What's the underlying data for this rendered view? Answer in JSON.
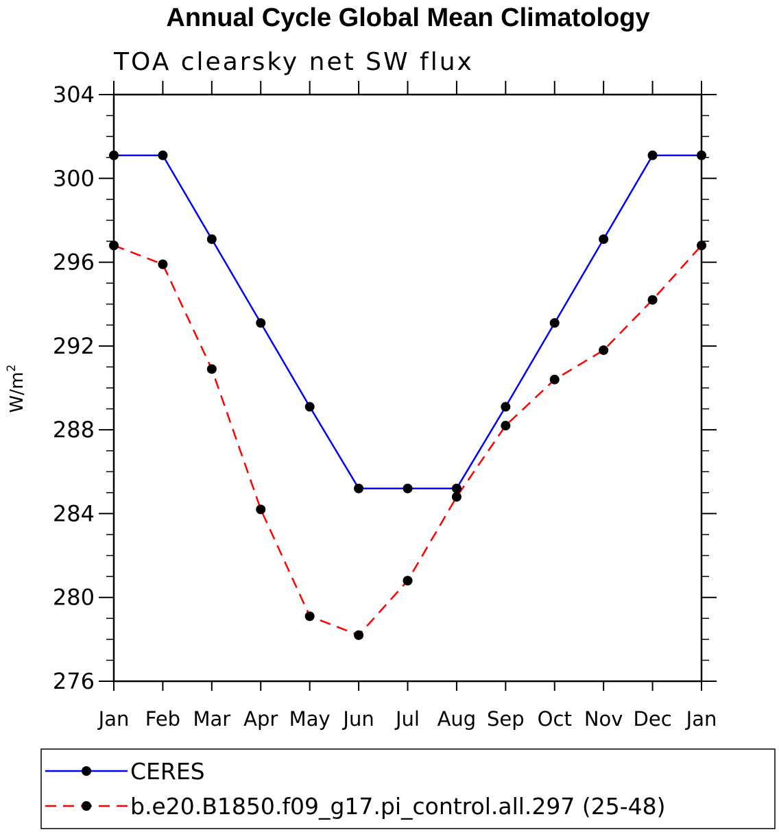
{
  "chart_data": {
    "type": "line",
    "title": "Annual Cycle Global Mean Climatology",
    "subtitle": "TOA clearsky net SW flux",
    "ylabel": "W/m",
    "ylabel_sup": "2",
    "ylim": [
      276,
      304
    ],
    "yticks": [
      276,
      280,
      284,
      288,
      292,
      296,
      300,
      304
    ],
    "ytick_labels": [
      "276",
      "280",
      "284",
      "288",
      "292",
      "296",
      "300",
      "304"
    ],
    "categories": [
      "Jan",
      "Feb",
      "Mar",
      "Apr",
      "May",
      "Jun",
      "Jul",
      "Aug",
      "Sep",
      "Oct",
      "Nov",
      "Dec",
      "Jan"
    ],
    "grid": false,
    "legend_position": "bottom",
    "series": [
      {
        "name": "CERES",
        "color": "#0000ff",
        "style": "solid",
        "marker": "filled-circle",
        "values": [
          301.1,
          301.1,
          297.1,
          293.1,
          289.1,
          285.2,
          285.2,
          285.2,
          289.1,
          293.1,
          297.1,
          301.1,
          301.1
        ]
      },
      {
        "name": "b.e20.B1850.f09_g17.pi_control.all.297 (25-48)",
        "color": "#ff0000",
        "style": "dashed",
        "marker": "filled-circle",
        "values": [
          296.8,
          295.9,
          290.9,
          284.2,
          279.1,
          278.2,
          280.8,
          284.8,
          288.2,
          290.4,
          291.8,
          294.2,
          296.8
        ]
      }
    ]
  }
}
